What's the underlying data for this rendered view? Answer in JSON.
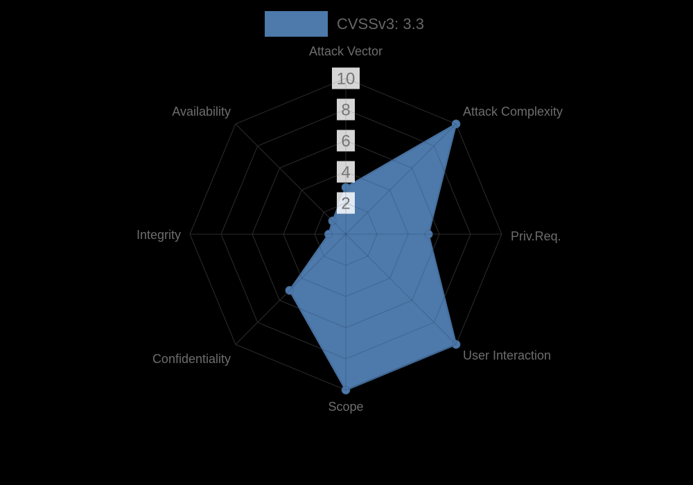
{
  "legend": {
    "label": "CVSSv3: 3.3",
    "swatch_color": "#4d79ab"
  },
  "chart_data": {
    "type": "radar",
    "title": "CVSSv3: 3.3",
    "categories": [
      "Attack Vector",
      "Attack Complexity",
      "Priv.Req.",
      "User Interaction",
      "Scope",
      "Confidentiality",
      "Integrity",
      "Availability"
    ],
    "series": [
      {
        "name": "CVSSv3: 3.3",
        "values": [
          3.0,
          10,
          5.3,
          10,
          10,
          5.1,
          1.1,
          1.2
        ]
      }
    ],
    "ticks": [
      2,
      4,
      6,
      8,
      10
    ],
    "rmin": 0,
    "rmax": 10,
    "grid": true,
    "legend_position": "top",
    "colors": {
      "series_fill": "#4d79ab",
      "series_stroke": "#46709f",
      "grid_under": "#353535",
      "grid_over": "rgba(0,0,0,0.16)",
      "tick_text": "#757575",
      "tick_backdrop": "rgba(255,255,255,0.84)",
      "axis_label": "#6d6d6d",
      "legend_text": "#666666",
      "background": "#000000"
    }
  }
}
